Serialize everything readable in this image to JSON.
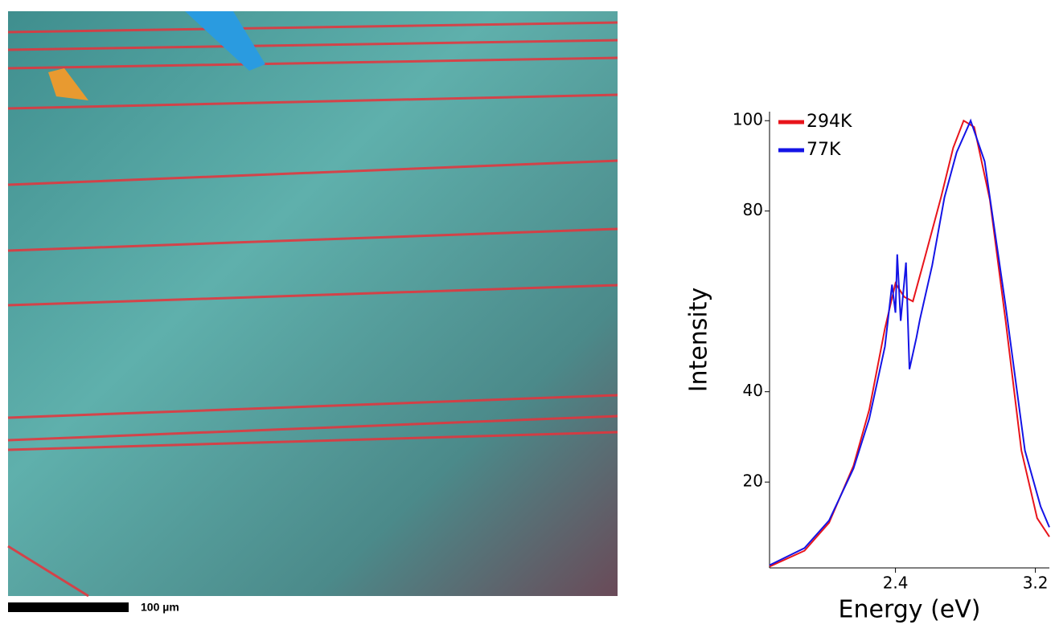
{
  "image_panel": {
    "scale_label": "100 µm"
  },
  "chart_data": {
    "type": "line",
    "xlabel": "Energy (eV)",
    "ylabel": "Intensity",
    "xlim": [
      1.68,
      3.28
    ],
    "ylim": [
      1,
      102
    ],
    "xticks": [
      2.4,
      3.2
    ],
    "yticks": [
      20,
      40,
      80,
      100
    ],
    "legend": "upper left",
    "series": [
      {
        "name": "294K",
        "color": "#e8141b",
        "x": [
          1.68,
          1.88,
          2.02,
          2.16,
          2.25,
          2.34,
          2.4,
          2.45,
          2.5,
          2.57,
          2.66,
          2.73,
          2.79,
          2.85,
          2.94,
          3.03,
          3.12,
          3.21,
          3.28
        ],
        "values": [
          1.3,
          4.8,
          11,
          23.6,
          36,
          54,
          64,
          61,
          60,
          70,
          83,
          94,
          100,
          98.6,
          82.5,
          55.7,
          27,
          12,
          7.9
        ]
      },
      {
        "name": "77K",
        "color": "#1414e6",
        "x": [
          1.68,
          1.88,
          2.02,
          2.16,
          2.25,
          2.34,
          2.38,
          2.4,
          2.41,
          2.43,
          2.46,
          2.48,
          2.52,
          2.54,
          2.61,
          2.68,
          2.75,
          2.83,
          2.91,
          3.03,
          3.14,
          3.23,
          3.28
        ],
        "values": [
          1.6,
          5.4,
          11.5,
          23,
          34,
          50,
          63.7,
          57.5,
          70.4,
          55.7,
          68.6,
          45,
          52,
          56,
          68,
          83,
          93,
          100,
          91,
          59,
          27,
          14.6,
          10
        ]
      }
    ]
  }
}
